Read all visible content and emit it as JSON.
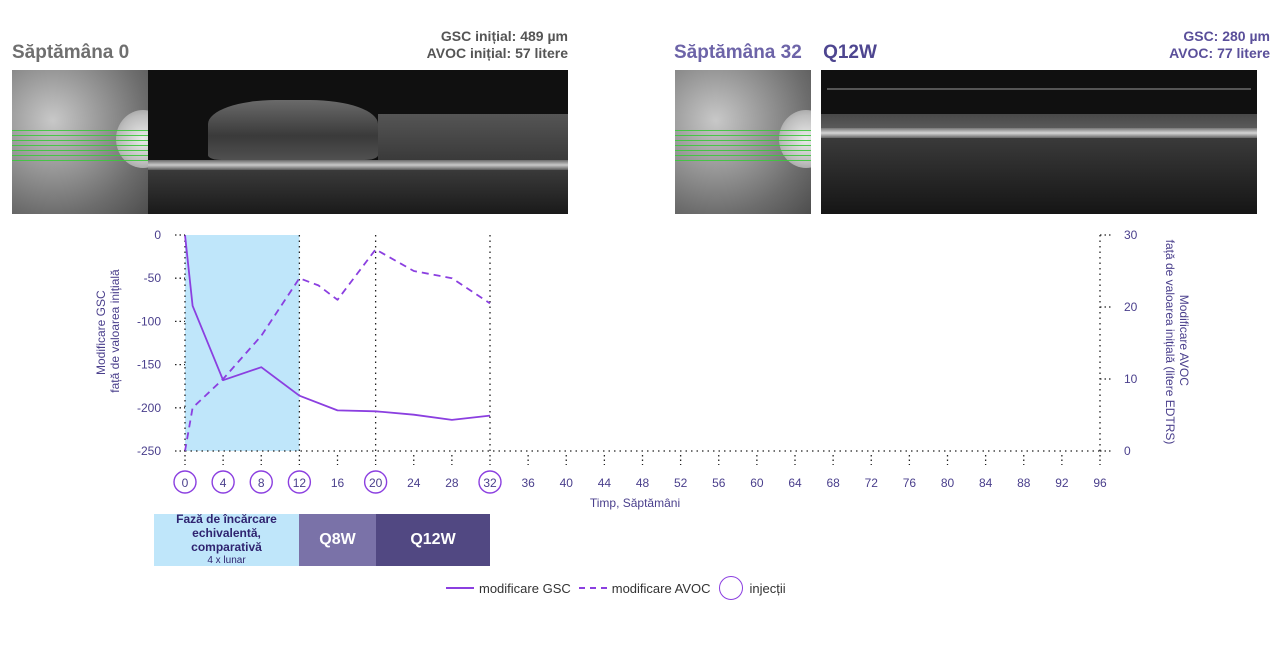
{
  "panels": {
    "left": {
      "title": "Săptămâna 0",
      "subtitle": "",
      "stat1": "GSC inițial: 489 µm",
      "stat2": "AVOC inițial: 57 litere"
    },
    "right": {
      "title": "Săptămâna 32",
      "subtitle": "Q12W",
      "stat1": "GSC: 280 µm",
      "stat2": "AVOC: 77 litere"
    }
  },
  "colors": {
    "line": "#8b3fe0",
    "axis": "#4a3f8c",
    "loading": "#bfe6fa",
    "q8w": "#7a72a8",
    "q12w": "#514882"
  },
  "chart_data": {
    "type": "line",
    "xlabel": "Timp, Săptămâni",
    "ylabel_left": [
      "Modificare GSC",
      "față de valoarea inițială"
    ],
    "ylabel_right": [
      "Modificare AVOC",
      "față de valoarea inițială (litere EDTRS)"
    ],
    "xlim": [
      0,
      96
    ],
    "x_ticks": [
      0,
      4,
      8,
      12,
      16,
      20,
      24,
      28,
      32,
      36,
      40,
      44,
      48,
      52,
      56,
      60,
      64,
      68,
      72,
      76,
      80,
      84,
      88,
      92,
      96
    ],
    "y_left_lim": [
      -250,
      0
    ],
    "y_left_ticks": [
      0,
      -50,
      -100,
      -150,
      -200,
      -250
    ],
    "y_right_lim": [
      0,
      30
    ],
    "y_right_ticks": [
      30,
      20,
      10,
      0
    ],
    "injection_weeks": [
      0,
      4,
      8,
      12,
      20,
      32
    ],
    "vertical_markers": [
      12,
      20,
      32
    ],
    "series": [
      {
        "name": "modificare GSC",
        "axis": "left",
        "style": "solid",
        "x": [
          0,
          0.8,
          4,
          8,
          12,
          16,
          20,
          24,
          28,
          32
        ],
        "y": [
          0,
          -82,
          -168,
          -153,
          -186,
          -203,
          -204,
          -208,
          -214,
          -209
        ]
      },
      {
        "name": "modificare AVOC",
        "axis": "right",
        "style": "dashed",
        "x": [
          0,
          0.8,
          4,
          8,
          12,
          14,
          16,
          20,
          24,
          28,
          32
        ],
        "y": [
          0,
          6,
          10,
          16,
          24,
          23,
          21,
          28,
          25,
          24,
          20.5
        ]
      }
    ],
    "phases": [
      {
        "label": "Fază de încărcare echivalentă, comparativă",
        "note": "4 x lunar",
        "start": 0,
        "end": 12
      },
      {
        "label": "Q8W",
        "start": 12,
        "end": 20
      },
      {
        "label": "Q12W",
        "start": 20,
        "end": 32
      }
    ],
    "legend": [
      {
        "label": "modificare GSC",
        "style": "solid"
      },
      {
        "label": "modificare AVOC",
        "style": "dashed"
      },
      {
        "label": "injecții",
        "style": "circle"
      }
    ]
  }
}
